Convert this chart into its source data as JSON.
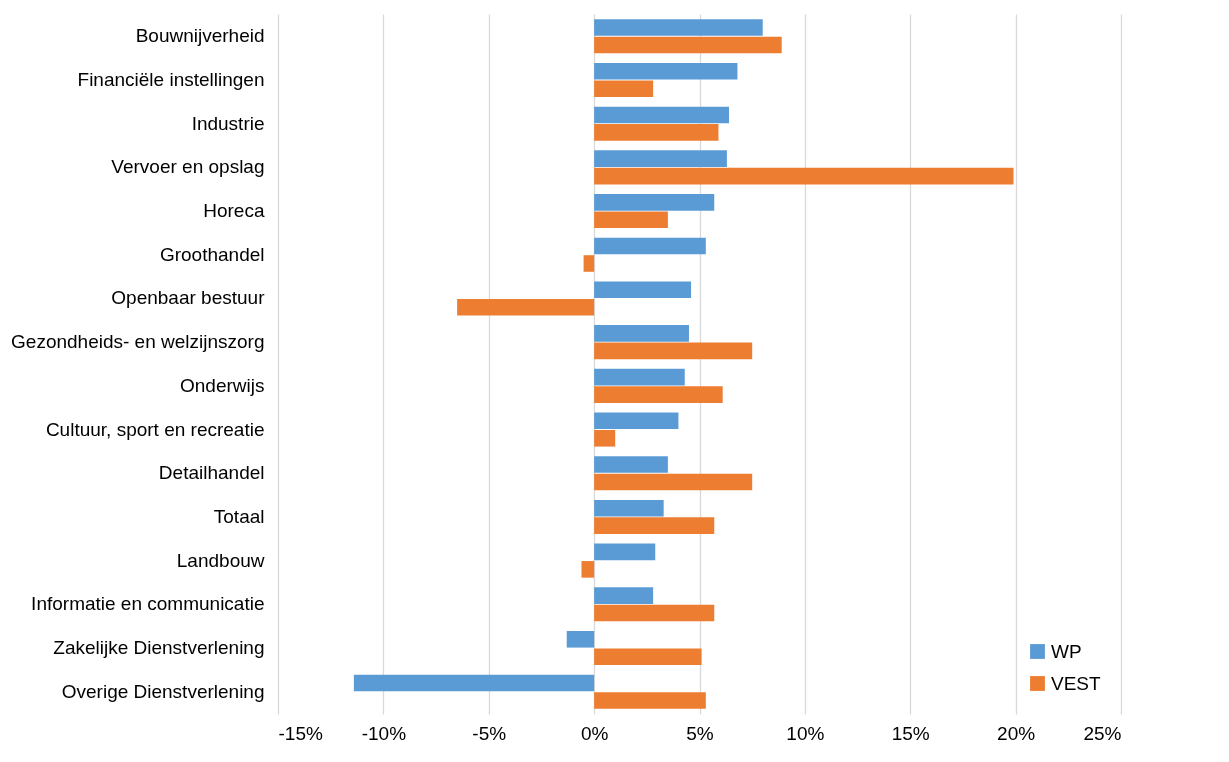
{
  "chart_data": {
    "type": "bar",
    "orientation": "horizontal",
    "categories": [
      "Bouwnijverheid",
      "Financiële instellingen",
      "Industrie",
      "Vervoer en opslag",
      "Horeca",
      "Groothandel",
      "Openbaar bestuur",
      "Gezondheids- en welzijnszorg",
      "Onderwijs",
      "Cultuur, sport en recreatie",
      "Detailhandel",
      "Totaal",
      "Landbouw",
      "Informatie en communicatie",
      "Zakelijke Dienstverlening",
      "Overige Dienstverlening"
    ],
    "series": [
      {
        "name": "WP",
        "color": "#5b9bd5",
        "values": [
          8.0,
          6.8,
          6.4,
          6.3,
          5.7,
          5.3,
          4.6,
          4.5,
          4.3,
          4.0,
          3.5,
          3.3,
          2.9,
          2.8,
          -1.3,
          -11.4
        ]
      },
      {
        "name": "VEST",
        "color": "#ed7d31",
        "values": [
          8.9,
          2.8,
          5.9,
          19.9,
          3.5,
          -0.5,
          -6.5,
          7.5,
          6.1,
          1.0,
          7.5,
          5.7,
          -0.6,
          5.7,
          5.1,
          5.3
        ]
      }
    ],
    "xlim": [
      -15,
      25
    ],
    "xticks": [
      {
        "value": -15,
        "label": "-15%"
      },
      {
        "value": -10,
        "label": "-10%"
      },
      {
        "value": -5,
        "label": "-5%"
      },
      {
        "value": 0,
        "label": "0%"
      },
      {
        "value": 5,
        "label": "5%"
      },
      {
        "value": 10,
        "label": "10%"
      },
      {
        "value": 15,
        "label": "15%"
      },
      {
        "value": 20,
        "label": "20%"
      },
      {
        "value": 25,
        "label": "25%"
      }
    ],
    "grid": "x",
    "legend": "bottom right"
  }
}
